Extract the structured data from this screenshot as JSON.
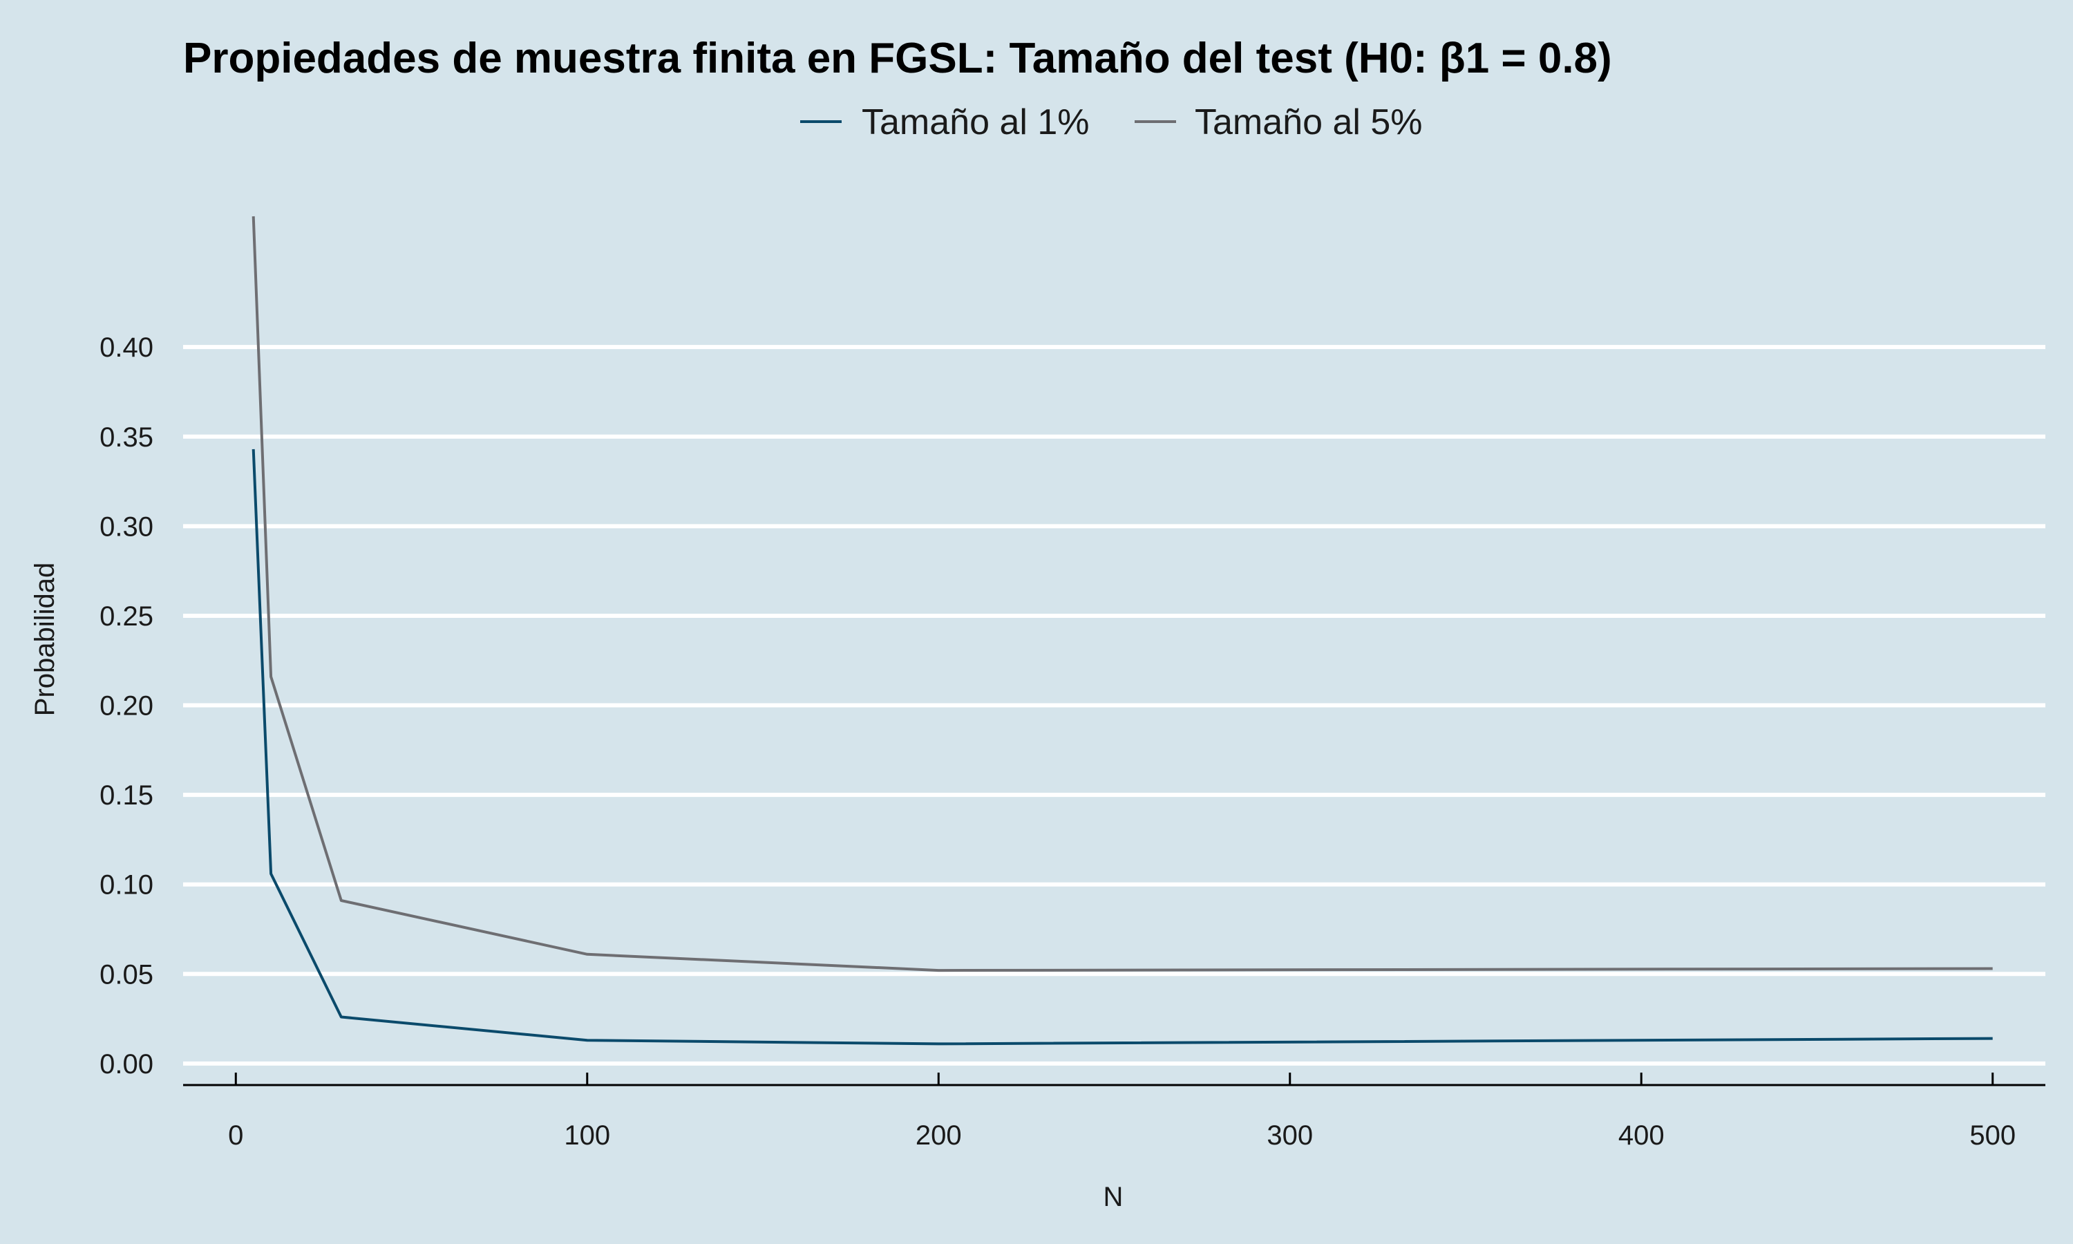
{
  "chart_data": {
    "type": "line",
    "title": "Propiedades de muestra finita en FGSL: Tamaño del test (H0: β1 = 0.8)",
    "xlabel": "N",
    "ylabel": "Probabilidad",
    "x": [
      5,
      10,
      30,
      100,
      200,
      500
    ],
    "series": [
      {
        "name": "Tamaño al 1%",
        "color": "#0b4a6b",
        "values": [
          0.343,
          0.106,
          0.026,
          0.013,
          0.011,
          0.014
        ]
      },
      {
        "name": "Tamaño al 5%",
        "color": "#6e6e72",
        "values": [
          0.473,
          0.216,
          0.091,
          0.061,
          0.052,
          0.053
        ]
      }
    ],
    "xlim": [
      -15,
      515
    ],
    "ylim": [
      -0.012,
      0.478
    ],
    "xticks": [
      0,
      100,
      200,
      300,
      400,
      500
    ],
    "xtick_labels": [
      "0",
      "100",
      "200",
      "300",
      "400",
      "500"
    ],
    "yticks": [
      0,
      0.05,
      0.1,
      0.15,
      0.2,
      0.25,
      0.3,
      0.35,
      0.4
    ],
    "ytick_labels": [
      "0.00",
      "0.05",
      "0.10",
      "0.15",
      "0.20",
      "0.25",
      "0.30",
      "0.35",
      "0.40"
    ],
    "grid": "horizontal",
    "legend_position": "top",
    "background": "#d5e4eb",
    "gridline_color": "#ffffff"
  }
}
